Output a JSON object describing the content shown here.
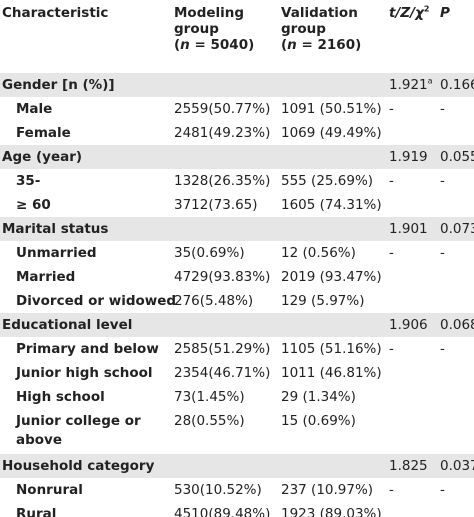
{
  "header": {
    "characteristic": "Characteristic",
    "modeling_line1": "Modeling",
    "modeling_line2": "group",
    "modeling_n_open": "(",
    "modeling_n_var": "n",
    "modeling_n_rest": " = 5040)",
    "validation_line1": "Validation",
    "validation_line2": "group",
    "validation_n_open": "(",
    "validation_n_var": "n",
    "validation_n_rest": " = 2160)",
    "stat": "t/Z/χ",
    "stat_sup": "2",
    "p": "P"
  },
  "rows": [
    {
      "type": "group",
      "label": "Gender [n (%)]",
      "model": "",
      "valid": "",
      "stat": "1.921",
      "stat_sup": "a",
      "p": "0.166"
    },
    {
      "type": "sub",
      "label": "Male",
      "model": "2559(50.77%)",
      "valid": "1091 (50.51%)",
      "stat": "-",
      "stat_sup": "",
      "p": "-"
    },
    {
      "type": "sub",
      "label": "Female",
      "model": "2481(49.23%)",
      "valid": "1069 (49.49%)",
      "stat": "",
      "stat_sup": "",
      "p": ""
    },
    {
      "type": "group",
      "label": "Age (year)",
      "model": "",
      "valid": "",
      "stat": "1.919",
      "stat_sup": "",
      "p": "0.055"
    },
    {
      "type": "sub",
      "label": "35-",
      "model": "1328(26.35%)",
      "valid": "555 (25.69%)",
      "stat": "-",
      "stat_sup": "",
      "p": "-"
    },
    {
      "type": "sub",
      "label": "≥ 60",
      "model": "3712(73.65)",
      "valid": "1605 (74.31%)",
      "stat": "",
      "stat_sup": "",
      "p": ""
    },
    {
      "type": "group",
      "label": "Marital status",
      "model": "",
      "valid": "",
      "stat": "1.901",
      "stat_sup": "",
      "p": "0.073"
    },
    {
      "type": "sub",
      "label": "Unmarried",
      "model": "35(0.69%)",
      "valid": "12 (0.56%)",
      "stat": "-",
      "stat_sup": "",
      "p": "-"
    },
    {
      "type": "sub",
      "label": "Married",
      "model": "4729(93.83%)",
      "valid": "2019 (93.47%)",
      "stat": "",
      "stat_sup": "",
      "p": ""
    },
    {
      "type": "sub",
      "label": "Divorced or widowed",
      "model": "276(5.48%)",
      "valid": "129 (5.97%)",
      "stat": "",
      "stat_sup": "",
      "p": ""
    },
    {
      "type": "group",
      "label": "Educational level",
      "model": "",
      "valid": "",
      "stat": "1.906",
      "stat_sup": "",
      "p": "0.068"
    },
    {
      "type": "sub",
      "label": "Primary and below",
      "model": "2585(51.29%)",
      "valid": "1105 (51.16%)",
      "stat": "-",
      "stat_sup": "",
      "p": "-"
    },
    {
      "type": "sub",
      "label": "Junior high school",
      "model": "2354(46.71%)",
      "valid": "1011 (46.81%)",
      "stat": "",
      "stat_sup": "",
      "p": ""
    },
    {
      "type": "sub",
      "label": "High school",
      "model": "73(1.45%)",
      "valid": "29 (1.34%)",
      "stat": "",
      "stat_sup": "",
      "p": ""
    },
    {
      "type": "double",
      "label": "Junior college or above",
      "model": "28(0.55%)",
      "valid": "15 (0.69%)",
      "stat": "",
      "stat_sup": "",
      "p": ""
    },
    {
      "type": "group",
      "label": "Household category",
      "model": "",
      "valid": "",
      "stat": "1.825",
      "stat_sup": "",
      "p": "0.037"
    },
    {
      "type": "sub",
      "label": "Nonrural",
      "model": "530(10.52%)",
      "valid": "237 (10.97%)",
      "stat": "-",
      "stat_sup": "",
      "p": "-"
    },
    {
      "type": "sub",
      "label": "Rural",
      "model": "4510(89.48%)",
      "valid": "1923 (89.03%)",
      "stat": "",
      "stat_sup": "",
      "p": ""
    }
  ]
}
